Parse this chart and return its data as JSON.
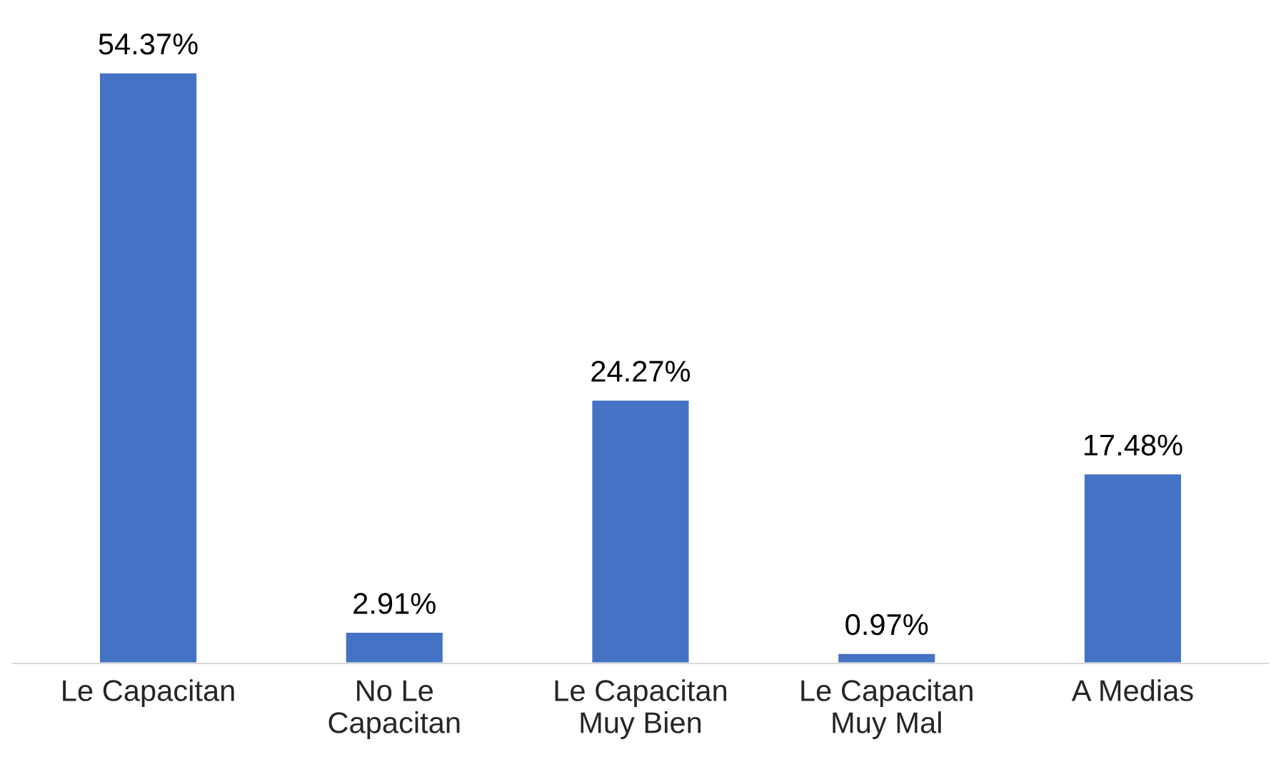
{
  "chart_data": {
    "type": "bar",
    "categories": [
      "Le Capacitan",
      "No Le\nCapacitan",
      "Le Capacitan\nMuy Bien",
      "Le Capacitan\nMuy Mal",
      "A Medias"
    ],
    "values": [
      54.37,
      2.91,
      24.27,
      0.97,
      17.48
    ],
    "color": "#4472c4",
    "value_labels": [
      "54.37%",
      "2.91%",
      "24.27%",
      "0.97%",
      "17.48%"
    ],
    "grid": false,
    "legend": false
  }
}
